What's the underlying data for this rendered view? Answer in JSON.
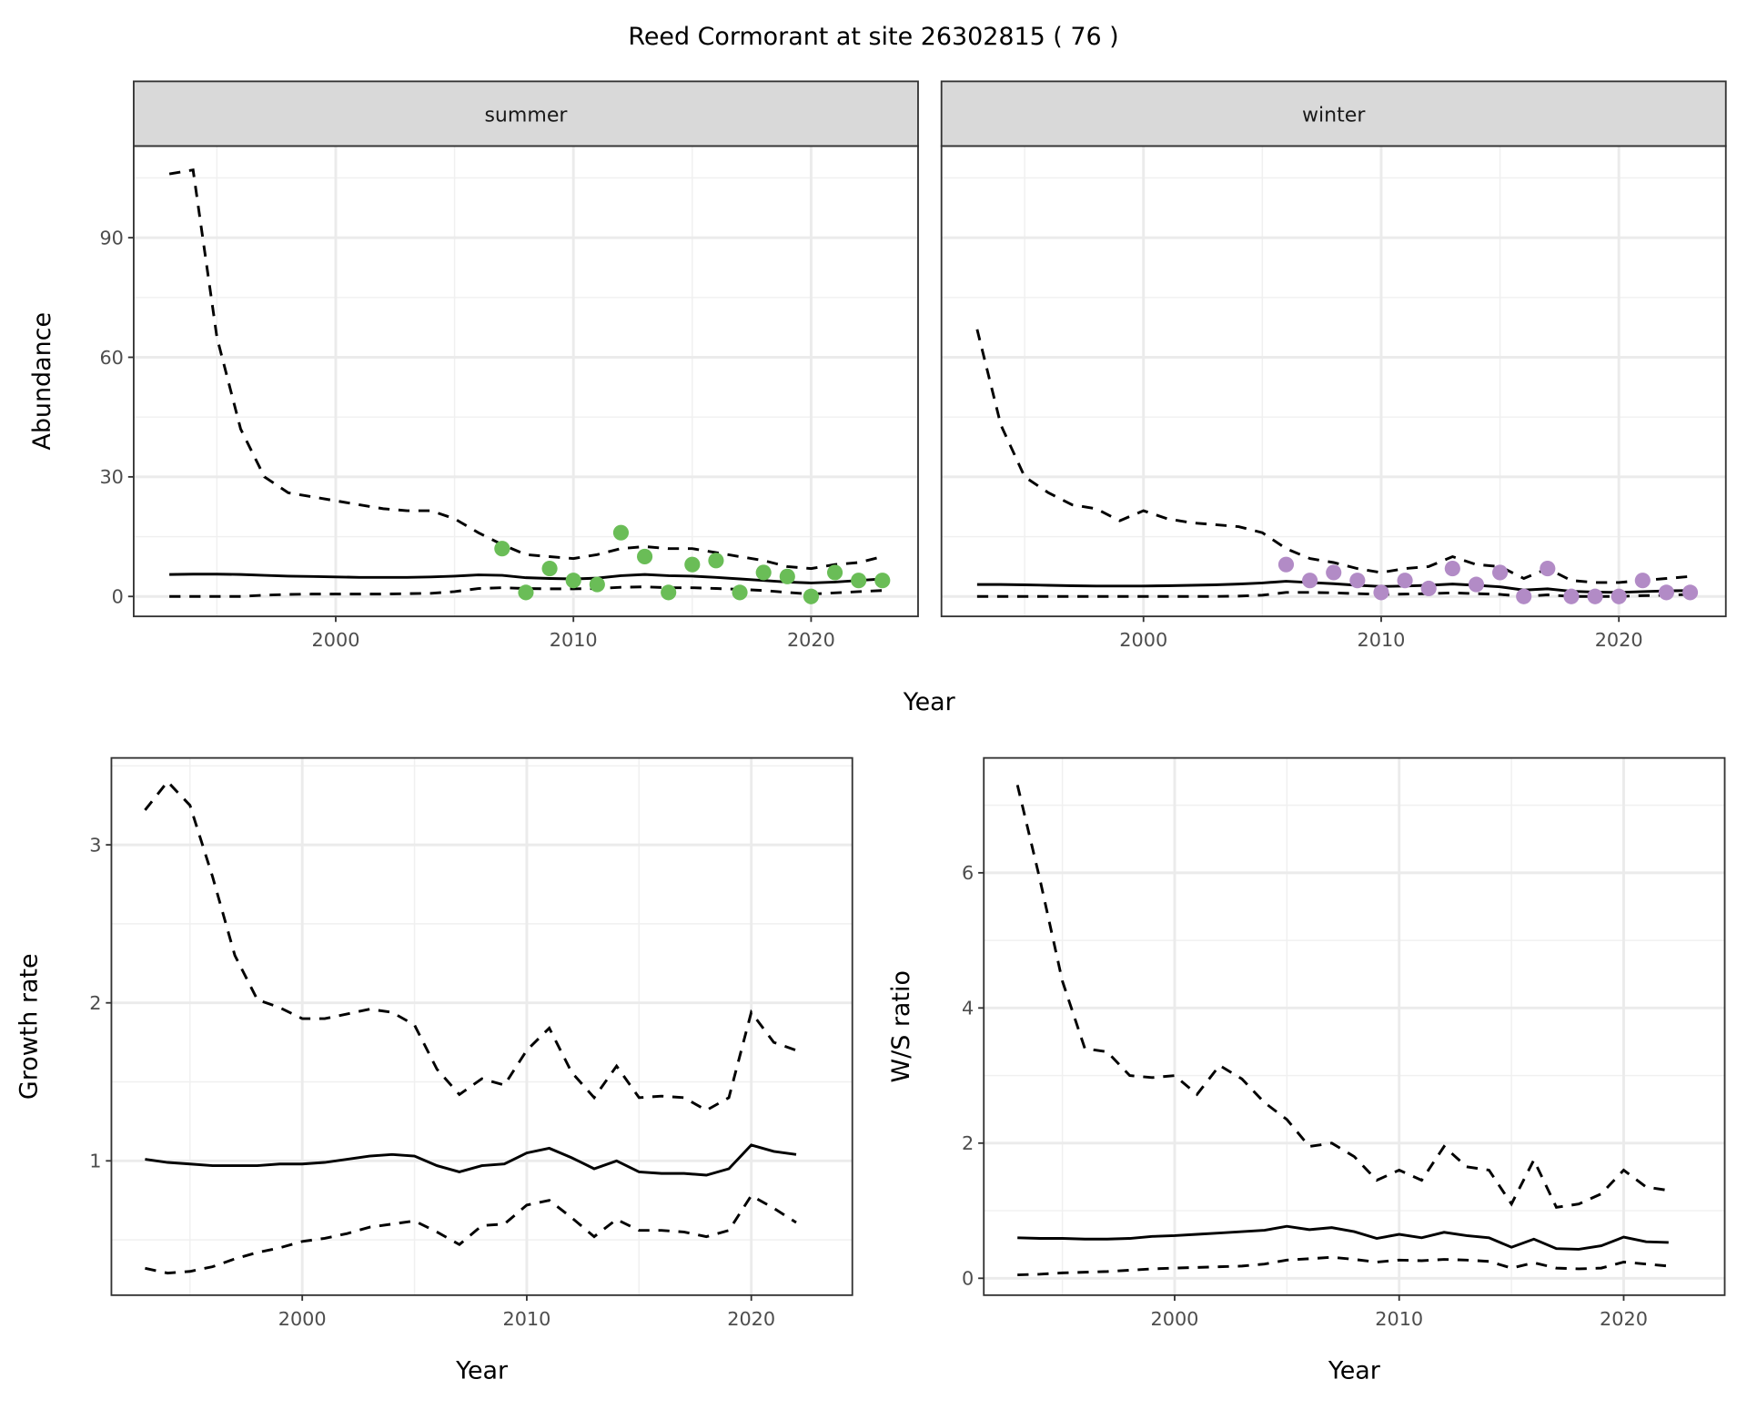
{
  "title": "Reed Cormorant at site 26302815 ( 76 )",
  "chart_data": [
    {
      "type": "line",
      "facet": "summer",
      "xlabel": "Year",
      "ylabel": "Abundance",
      "xlim": [
        1991.5,
        2024.5
      ],
      "ylim": [
        -5,
        113
      ],
      "xticks": [
        2000,
        2010,
        2020
      ],
      "yticks": [
        0,
        30,
        60,
        90
      ],
      "minor_y": [
        15,
        45,
        75,
        105
      ],
      "minor_x": [
        1995,
        2005,
        2015
      ],
      "point_color": "#6abd57",
      "x": [
        1993,
        1994,
        1995,
        1996,
        1997,
        1998,
        1999,
        2000,
        2001,
        2002,
        2003,
        2004,
        2005,
        2006,
        2007,
        2008,
        2009,
        2010,
        2011,
        2012,
        2013,
        2014,
        2015,
        2016,
        2017,
        2018,
        2019,
        2020,
        2021,
        2022,
        2023
      ],
      "upper": [
        106,
        107,
        65,
        42,
        30,
        26,
        25,
        24,
        23,
        22,
        21.5,
        21.5,
        19.5,
        16,
        13,
        10.5,
        10,
        9.5,
        10.5,
        12,
        12.5,
        12,
        12,
        11,
        10,
        9,
        7.5,
        7,
        8,
        8.5,
        10
      ],
      "mid": [
        5.5,
        5.6,
        5.6,
        5.5,
        5.3,
        5.1,
        5,
        4.9,
        4.8,
        4.8,
        4.8,
        4.9,
        5.1,
        5.4,
        5.3,
        4.7,
        4.5,
        4.4,
        4.6,
        5.2,
        5.5,
        5.2,
        5.1,
        4.8,
        4.4,
        4,
        3.6,
        3.4,
        3.6,
        4,
        4.4
      ],
      "lower": [
        0,
        0,
        0,
        0,
        0.3,
        0.5,
        0.6,
        0.6,
        0.6,
        0.6,
        0.7,
        0.8,
        1.2,
        2,
        2.2,
        2,
        1.9,
        1.9,
        2,
        2.3,
        2.4,
        2.2,
        2.2,
        2,
        1.8,
        1.5,
        1,
        0.6,
        0.9,
        1.2,
        1.5
      ],
      "points": {
        "x": [
          2007,
          2008,
          2009,
          2010,
          2011,
          2012,
          2013,
          2014,
          2015,
          2016,
          2017,
          2018,
          2019,
          2020,
          2021,
          2022,
          2023
        ],
        "y": [
          12,
          1,
          7,
          4,
          3,
          16,
          10,
          1,
          8,
          9,
          1,
          6,
          5,
          0,
          6,
          4,
          4
        ]
      }
    },
    {
      "type": "line",
      "facet": "winter",
      "xlabel": "Year",
      "ylabel": "Abundance",
      "xlim": [
        1991.5,
        2024.5
      ],
      "ylim": [
        -5,
        113
      ],
      "xticks": [
        2000,
        2010,
        2020
      ],
      "yticks": [
        0,
        30,
        60,
        90
      ],
      "minor_y": [
        15,
        45,
        75,
        105
      ],
      "minor_x": [
        1995,
        2005,
        2015
      ],
      "point_color": "#b28bc6",
      "x": [
        1993,
        1994,
        1995,
        1996,
        1997,
        1998,
        1999,
        2000,
        2001,
        2002,
        2003,
        2004,
        2005,
        2006,
        2007,
        2008,
        2009,
        2010,
        2011,
        2012,
        2013,
        2014,
        2015,
        2016,
        2017,
        2018,
        2019,
        2020,
        2021,
        2022,
        2023
      ],
      "upper": [
        67,
        43,
        30,
        26,
        23,
        22,
        19,
        21.5,
        19.5,
        18.5,
        18,
        17.5,
        16,
        12,
        9.5,
        8.5,
        7,
        6,
        7,
        7.5,
        10,
        8,
        7.5,
        4.5,
        7,
        4,
        3.5,
        3.5,
        4,
        4.5,
        5
      ],
      "mid": [
        3,
        3,
        2.9,
        2.8,
        2.7,
        2.6,
        2.6,
        2.6,
        2.7,
        2.8,
        2.9,
        3.1,
        3.4,
        3.8,
        3.5,
        3.2,
        2.8,
        2.5,
        2.6,
        2.8,
        3.1,
        2.8,
        2.4,
        1.6,
        1.9,
        1.3,
        1.1,
        1,
        1.2,
        1.4,
        1.5
      ],
      "lower": [
        0,
        0,
        0,
        0,
        0,
        0,
        0,
        0,
        0,
        0,
        0,
        0.1,
        0.3,
        1,
        1,
        0.9,
        0.7,
        0.5,
        0.6,
        0.7,
        0.9,
        0.7,
        0.5,
        0,
        0.4,
        0,
        0,
        0,
        0.2,
        0.3,
        0.5
      ],
      "points": {
        "x": [
          2006,
          2007,
          2008,
          2009,
          2010,
          2011,
          2012,
          2013,
          2014,
          2015,
          2016,
          2017,
          2018,
          2019,
          2020,
          2021,
          2022,
          2023
        ],
        "y": [
          8,
          4,
          6,
          4,
          1,
          4,
          2,
          7,
          3,
          6,
          0,
          7,
          0,
          0,
          0,
          4,
          1,
          1
        ]
      }
    },
    {
      "type": "line",
      "name": "growth",
      "xlabel": "Year",
      "ylabel": "Growth rate",
      "xlim": [
        1991.5,
        2024.5
      ],
      "ylim": [
        0.15,
        3.55
      ],
      "xticks": [
        2000,
        2010,
        2020
      ],
      "yticks": [
        1,
        2,
        3
      ],
      "minor_y": [
        0.5,
        1.5,
        2.5,
        3.5
      ],
      "minor_x": [
        1995,
        2005,
        2015
      ],
      "x": [
        1993,
        1994,
        1995,
        1996,
        1997,
        1998,
        1999,
        2000,
        2001,
        2002,
        2003,
        2004,
        2005,
        2006,
        2007,
        2008,
        2009,
        2010,
        2011,
        2012,
        2013,
        2014,
        2015,
        2016,
        2017,
        2018,
        2019,
        2020,
        2021,
        2022
      ],
      "upper": [
        3.22,
        3.4,
        3.25,
        2.8,
        2.3,
        2.02,
        1.97,
        1.9,
        1.9,
        1.93,
        1.96,
        1.94,
        1.86,
        1.58,
        1.42,
        1.52,
        1.48,
        1.7,
        1.84,
        1.56,
        1.4,
        1.6,
        1.4,
        1.41,
        1.4,
        1.32,
        1.4,
        1.94,
        1.75,
        1.7
      ],
      "mid": [
        1.01,
        0.99,
        0.98,
        0.97,
        0.97,
        0.97,
        0.98,
        0.98,
        0.99,
        1.01,
        1.03,
        1.04,
        1.03,
        0.97,
        0.93,
        0.97,
        0.98,
        1.05,
        1.08,
        1.02,
        0.95,
        1.0,
        0.93,
        0.92,
        0.92,
        0.91,
        0.95,
        1.1,
        1.06,
        1.04
      ],
      "lower": [
        0.32,
        0.29,
        0.3,
        0.33,
        0.38,
        0.42,
        0.45,
        0.49,
        0.51,
        0.54,
        0.58,
        0.6,
        0.62,
        0.55,
        0.47,
        0.59,
        0.6,
        0.72,
        0.75,
        0.64,
        0.52,
        0.63,
        0.56,
        0.56,
        0.55,
        0.52,
        0.56,
        0.78,
        0.7,
        0.61
      ]
    },
    {
      "type": "line",
      "name": "ws_ratio",
      "xlabel": "Year",
      "ylabel": "W/S ratio",
      "xlim": [
        1991.5,
        2024.5
      ],
      "ylim": [
        -0.25,
        7.7
      ],
      "xticks": [
        2000,
        2010,
        2020
      ],
      "yticks": [
        0,
        2,
        4,
        6
      ],
      "minor_y": [
        1,
        3,
        5,
        7
      ],
      "minor_x": [
        1995,
        2005,
        2015
      ],
      "x": [
        1993,
        1994,
        1995,
        1996,
        1997,
        1998,
        1999,
        2000,
        2001,
        2002,
        2003,
        2004,
        2005,
        2006,
        2007,
        2008,
        2009,
        2010,
        2011,
        2012,
        2013,
        2014,
        2015,
        2016,
        2017,
        2018,
        2019,
        2020,
        2021,
        2022
      ],
      "upper": [
        7.3,
        5.9,
        4.4,
        3.4,
        3.35,
        3.0,
        2.97,
        3.0,
        2.72,
        3.15,
        2.95,
        2.6,
        2.35,
        1.95,
        2.0,
        1.8,
        1.45,
        1.6,
        1.45,
        1.95,
        1.65,
        1.6,
        1.1,
        1.75,
        1.05,
        1.1,
        1.25,
        1.6,
        1.35,
        1.3
      ],
      "mid": [
        0.6,
        0.59,
        0.59,
        0.58,
        0.58,
        0.59,
        0.62,
        0.63,
        0.65,
        0.67,
        0.69,
        0.71,
        0.77,
        0.72,
        0.75,
        0.69,
        0.59,
        0.65,
        0.6,
        0.68,
        0.63,
        0.6,
        0.46,
        0.58,
        0.44,
        0.43,
        0.48,
        0.61,
        0.54,
        0.53
      ],
      "lower": [
        0.05,
        0.06,
        0.08,
        0.09,
        0.1,
        0.12,
        0.14,
        0.15,
        0.16,
        0.17,
        0.18,
        0.21,
        0.27,
        0.29,
        0.31,
        0.28,
        0.24,
        0.27,
        0.26,
        0.28,
        0.27,
        0.25,
        0.15,
        0.23,
        0.15,
        0.14,
        0.15,
        0.24,
        0.21,
        0.18
      ]
    }
  ]
}
